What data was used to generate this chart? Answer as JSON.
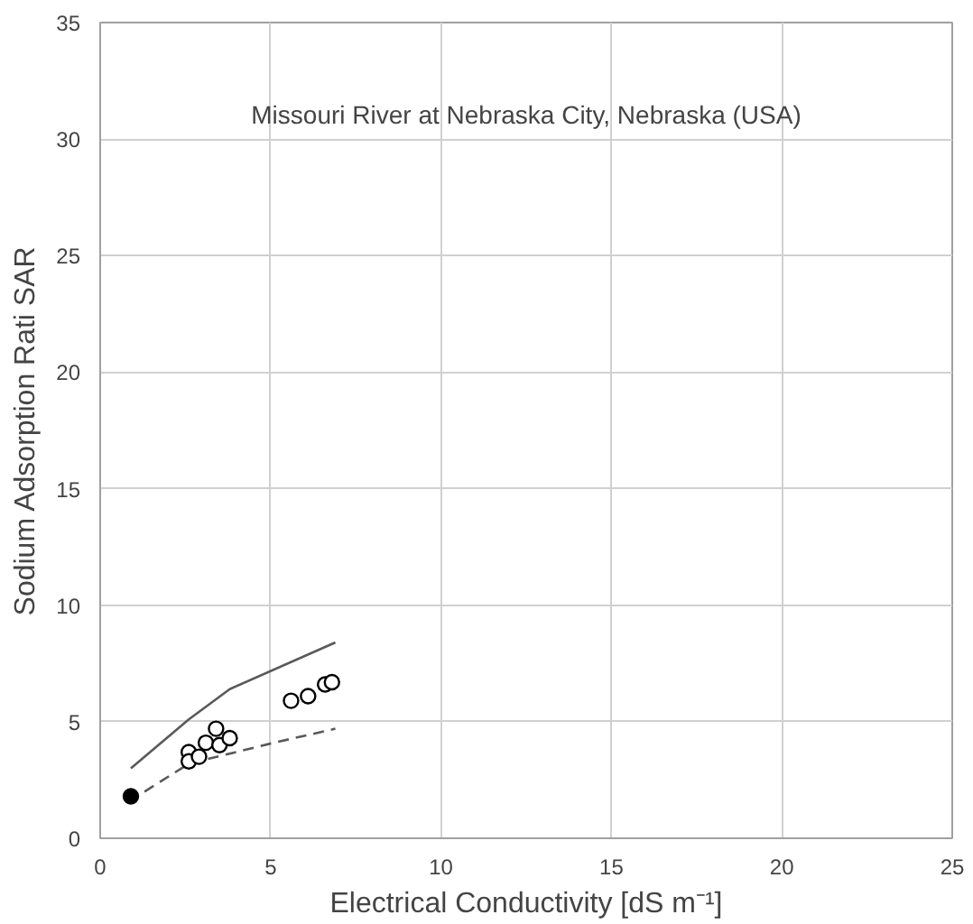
{
  "chart_data": {
    "type": "scatter",
    "title": "Missouri River at Nebraska City, Nebraska (USA)",
    "xlabel": "Electrical Conductivity [dS m⁻¹]",
    "ylabel": "Sodium Adsorption Rati SAR",
    "xlim": [
      0,
      25
    ],
    "ylim": [
      0,
      35
    ],
    "xticks": [
      0,
      5,
      10,
      15,
      20,
      25
    ],
    "yticks": [
      0,
      5,
      10,
      15,
      20,
      25,
      30,
      35
    ],
    "grid": true,
    "series": [
      {
        "type": "line",
        "color": "#595959",
        "line_style": "solid",
        "x": [
          0.9,
          2.6,
          3.8,
          6.9
        ],
        "values": [
          3.0,
          5.1,
          6.4,
          8.4
        ]
      },
      {
        "type": "line",
        "color": "#595959",
        "line_style": "dashed",
        "x": [
          1.3,
          2.6,
          5.1,
          6.9
        ],
        "values": [
          2.0,
          3.2,
          4.1,
          4.7
        ]
      },
      {
        "color": "#000000",
        "marker": "circle",
        "x": [
          0.9
        ],
        "values": [
          1.8
        ]
      },
      {
        "color": "#ffffff",
        "marker": "circle",
        "x": [
          2.6,
          2.6,
          2.9,
          3.1,
          3.4,
          3.5,
          3.8,
          5.6,
          6.1,
          6.6,
          6.8
        ],
        "values": [
          3.7,
          3.3,
          3.5,
          4.1,
          4.7,
          4.0,
          4.3,
          5.9,
          6.1,
          6.6,
          6.7
        ]
      }
    ]
  }
}
